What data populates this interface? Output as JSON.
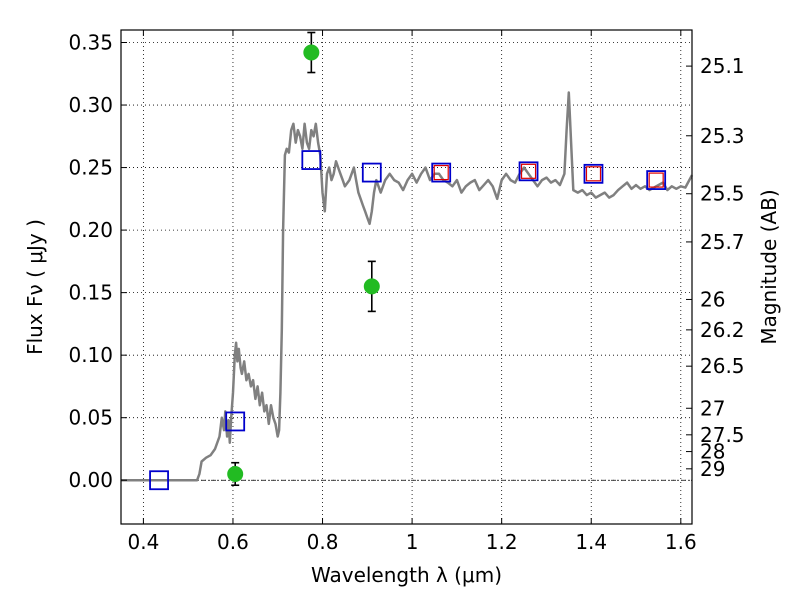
{
  "chart_data": {
    "type": "scatter",
    "xlabel": "Wavelength  λ (μm)",
    "ylabel": "Flux  Fν  ( μJy )",
    "y2label": "Magnitude (AB)",
    "xlim": [
      0.35,
      1.625
    ],
    "ylim": [
      -0.035,
      0.36
    ],
    "grid": true,
    "x_ticks": [
      0.4,
      0.6,
      0.8,
      1.0,
      1.2,
      1.4,
      1.6
    ],
    "x_tick_labels": [
      "0.4",
      "0.6",
      "0.8",
      "1",
      "1.2",
      "1.4",
      "1.6"
    ],
    "y_ticks": [
      0.0,
      0.05,
      0.1,
      0.15,
      0.2,
      0.25,
      0.3,
      0.35
    ],
    "y_tick_labels": [
      "0.00",
      "0.05",
      "0.10",
      "0.15",
      "0.20",
      "0.25",
      "0.30",
      "0.35"
    ],
    "magnitude_ticks": [
      25.1,
      25.3,
      25.5,
      25.7,
      26,
      26.2,
      26.5,
      27,
      27.5,
      28,
      29
    ],
    "magnitude_tick_labels": [
      "25.1",
      "25.3",
      "25.5",
      "25.7",
      "26",
      "26.2",
      "26.5",
      "27",
      "27.5",
      "28",
      "29"
    ],
    "series": [
      {
        "kind": "line",
        "color": "#808080",
        "x": [
          0.35,
          0.45,
          0.52,
          0.525,
          0.53,
          0.54,
          0.55,
          0.56,
          0.57,
          0.575,
          0.58,
          0.583,
          0.587,
          0.59,
          0.593,
          0.596,
          0.6,
          0.604,
          0.607,
          0.61,
          0.613,
          0.617,
          0.62,
          0.625,
          0.63,
          0.635,
          0.64,
          0.645,
          0.65,
          0.655,
          0.66,
          0.665,
          0.67,
          0.675,
          0.68,
          0.685,
          0.69,
          0.695,
          0.7,
          0.703,
          0.706,
          0.709,
          0.712,
          0.716,
          0.72,
          0.725,
          0.73,
          0.735,
          0.74,
          0.745,
          0.75,
          0.755,
          0.76,
          0.765,
          0.77,
          0.775,
          0.78,
          0.785,
          0.79,
          0.795,
          0.8,
          0.805,
          0.81,
          0.815,
          0.82,
          0.825,
          0.83,
          0.835,
          0.84,
          0.845,
          0.85,
          0.86,
          0.87,
          0.875,
          0.88,
          0.885,
          0.89,
          0.895,
          0.9,
          0.905,
          0.91,
          0.915,
          0.92,
          0.925,
          0.93,
          0.94,
          0.95,
          0.96,
          0.97,
          0.98,
          0.99,
          1.0,
          1.01,
          1.02,
          1.03,
          1.04,
          1.05,
          1.06,
          1.07,
          1.08,
          1.09,
          1.1,
          1.11,
          1.12,
          1.13,
          1.14,
          1.15,
          1.16,
          1.17,
          1.18,
          1.19,
          1.2,
          1.21,
          1.22,
          1.23,
          1.24,
          1.25,
          1.26,
          1.27,
          1.28,
          1.29,
          1.3,
          1.31,
          1.32,
          1.33,
          1.34,
          1.345,
          1.35,
          1.355,
          1.36,
          1.37,
          1.38,
          1.39,
          1.4,
          1.41,
          1.42,
          1.43,
          1.44,
          1.45,
          1.46,
          1.47,
          1.48,
          1.49,
          1.5,
          1.51,
          1.52,
          1.53,
          1.54,
          1.55,
          1.56,
          1.57,
          1.58,
          1.59,
          1.6,
          1.61,
          1.625
        ],
        "y": [
          0.0,
          0.0,
          0.0,
          0.005,
          0.015,
          0.018,
          0.02,
          0.025,
          0.035,
          0.05,
          0.04,
          0.055,
          0.035,
          0.048,
          0.03,
          0.05,
          0.07,
          0.1,
          0.11,
          0.095,
          0.105,
          0.09,
          0.085,
          0.095,
          0.08,
          0.085,
          0.075,
          0.08,
          0.065,
          0.075,
          0.06,
          0.07,
          0.055,
          0.06,
          0.045,
          0.06,
          0.05,
          0.045,
          0.035,
          0.04,
          0.07,
          0.12,
          0.2,
          0.26,
          0.265,
          0.262,
          0.28,
          0.285,
          0.27,
          0.28,
          0.275,
          0.265,
          0.285,
          0.27,
          0.265,
          0.28,
          0.275,
          0.285,
          0.27,
          0.26,
          0.23,
          0.215,
          0.245,
          0.25,
          0.24,
          0.245,
          0.255,
          0.25,
          0.245,
          0.24,
          0.235,
          0.24,
          0.25,
          0.24,
          0.23,
          0.225,
          0.22,
          0.215,
          0.21,
          0.205,
          0.215,
          0.23,
          0.24,
          0.235,
          0.23,
          0.24,
          0.245,
          0.24,
          0.238,
          0.232,
          0.24,
          0.245,
          0.238,
          0.245,
          0.25,
          0.24,
          0.245,
          0.245,
          0.24,
          0.238,
          0.235,
          0.24,
          0.23,
          0.235,
          0.238,
          0.24,
          0.232,
          0.236,
          0.24,
          0.235,
          0.225,
          0.24,
          0.245,
          0.24,
          0.238,
          0.245,
          0.25,
          0.245,
          0.24,
          0.235,
          0.24,
          0.242,
          0.238,
          0.24,
          0.236,
          0.245,
          0.28,
          0.31,
          0.27,
          0.232,
          0.23,
          0.232,
          0.228,
          0.23,
          0.226,
          0.228,
          0.23,
          0.226,
          0.228,
          0.232,
          0.235,
          0.238,
          0.233,
          0.236,
          0.233,
          0.235,
          0.232,
          0.234,
          0.236,
          0.238,
          0.232,
          0.235,
          0.233,
          0.235,
          0.234,
          0.244
        ]
      },
      {
        "kind": "square",
        "color": "#0000cc",
        "x": [
          0.435,
          0.605,
          0.775,
          0.91,
          1.065,
          1.26,
          1.405,
          1.545
        ],
        "y": [
          0.0,
          0.047,
          0.256,
          0.246,
          0.246,
          0.247,
          0.245,
          0.24
        ]
      },
      {
        "kind": "square",
        "color": "#dd0000",
        "x": [
          1.065,
          1.26,
          1.405,
          1.545
        ],
        "y": [
          0.246,
          0.247,
          0.245,
          0.24
        ]
      },
      {
        "kind": "errorbar-dot",
        "color": "#22bb22",
        "x": [
          0.605,
          0.775,
          0.91
        ],
        "y": [
          0.005,
          0.342,
          0.155
        ],
        "yerr": [
          0.009,
          0.016,
          0.02
        ]
      }
    ]
  }
}
